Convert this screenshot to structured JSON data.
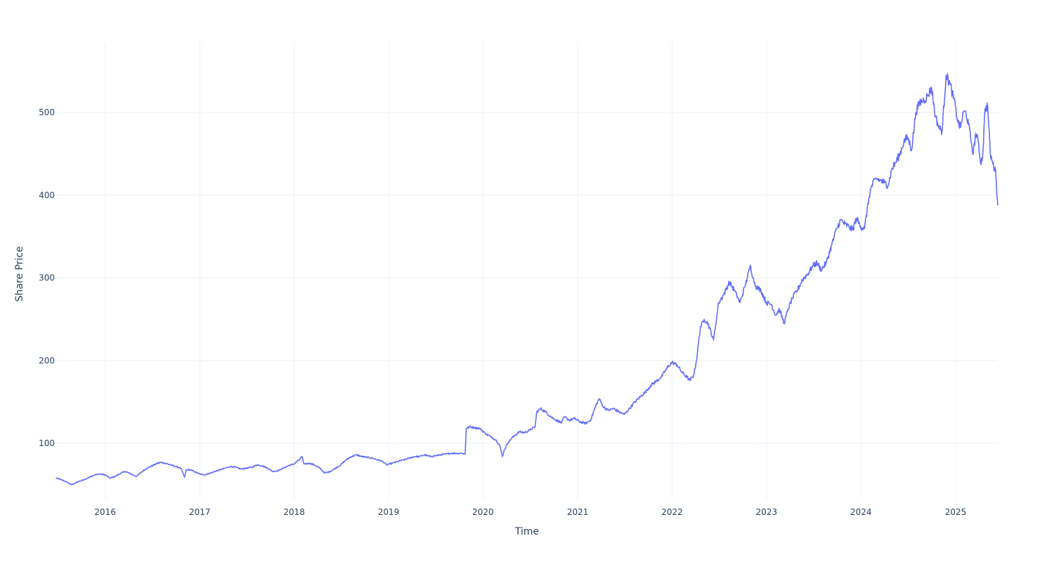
{
  "chart_data": {
    "type": "line",
    "title": "",
    "xlabel": "Time",
    "ylabel": "Share Price",
    "x_axis_type": "date",
    "xlim": [
      "2015-06-26",
      "2025-06-13"
    ],
    "ylim": [
      33,
      585
    ],
    "grid": true,
    "legend": "none",
    "x_ticks": [
      "2016",
      "2017",
      "2018",
      "2019",
      "2020",
      "2021",
      "2022",
      "2023",
      "2024",
      "2025"
    ],
    "x_tick_dates": [
      "2016-01-01",
      "2017-01-01",
      "2018-01-01",
      "2019-01-01",
      "2020-01-01",
      "2021-01-01",
      "2022-01-01",
      "2023-01-01",
      "2024-01-01",
      "2025-01-01"
    ],
    "y_ticks": [
      100,
      200,
      300,
      400,
      500
    ],
    "line_color": "#636efa",
    "series": [
      {
        "x": [
          "2015-06-26",
          "2015-07-15",
          "2015-08-01",
          "2015-08-24",
          "2015-09-15",
          "2015-10-01",
          "2015-10-20",
          "2015-11-05",
          "2015-11-25",
          "2015-12-10",
          "2015-12-31",
          "2016-01-20",
          "2016-02-10",
          "2016-03-01",
          "2016-03-20",
          "2016-04-10",
          "2016-04-30",
          "2016-05-20",
          "2016-06-10",
          "2016-06-25",
          "2016-07-15",
          "2016-08-01",
          "2016-08-20",
          "2016-09-10",
          "2016-09-30",
          "2016-10-20",
          "2016-11-03",
          "2016-11-10",
          "2016-11-25",
          "2016-12-10",
          "2016-12-31",
          "2017-01-20",
          "2017-02-10",
          "2017-03-01",
          "2017-03-20",
          "2017-04-10",
          "2017-04-30",
          "2017-05-20",
          "2017-06-10",
          "2017-06-30",
          "2017-07-20",
          "2017-08-10",
          "2017-08-30",
          "2017-09-20",
          "2017-10-10",
          "2017-10-31",
          "2017-11-20",
          "2017-12-10",
          "2017-12-31",
          "2018-01-20",
          "2018-01-31",
          "2018-02-08",
          "2018-02-28",
          "2018-03-20",
          "2018-04-10",
          "2018-04-30",
          "2018-05-20",
          "2018-06-10",
          "2018-06-30",
          "2018-07-20",
          "2018-08-10",
          "2018-08-30",
          "2018-09-20",
          "2018-10-10",
          "2018-10-31",
          "2018-11-20",
          "2018-12-10",
          "2018-12-24",
          "2019-01-15",
          "2019-02-05",
          "2019-02-28",
          "2019-03-20",
          "2019-04-10",
          "2019-04-30",
          "2019-05-20",
          "2019-06-10",
          "2019-06-30",
          "2019-07-20",
          "2019-08-10",
          "2019-08-30",
          "2019-09-20",
          "2019-10-10",
          "2019-10-24",
          "2019-10-28",
          "2019-11-10",
          "2019-11-30",
          "2019-12-20",
          "2020-01-10",
          "2020-01-31",
          "2020-02-20",
          "2020-03-05",
          "2020-03-16",
          "2020-03-23",
          "2020-04-05",
          "2020-04-20",
          "2020-05-05",
          "2020-05-20",
          "2020-06-10",
          "2020-06-30",
          "2020-07-20",
          "2020-07-27",
          "2020-08-10",
          "2020-08-30",
          "2020-09-20",
          "2020-10-10",
          "2020-10-31",
          "2020-11-10",
          "2020-11-30",
          "2020-12-20",
          "2021-01-10",
          "2021-01-31",
          "2021-02-20",
          "2021-03-10",
          "2021-03-25",
          "2021-04-10",
          "2021-04-30",
          "2021-05-20",
          "2021-06-10",
          "2021-06-30",
          "2021-07-20",
          "2021-08-10",
          "2021-08-30",
          "2021-09-20",
          "2021-10-10",
          "2021-10-31",
          "2021-11-20",
          "2021-12-10",
          "2021-12-31",
          "2022-01-20",
          "2022-02-10",
          "2022-02-28",
          "2022-03-10",
          "2022-03-25",
          "2022-04-05",
          "2022-04-20",
          "2022-05-05",
          "2022-05-20",
          "2022-06-10",
          "2022-06-30",
          "2022-07-20",
          "2022-08-10",
          "2022-08-30",
          "2022-09-20",
          "2022-10-10",
          "2022-10-31",
          "2022-11-10",
          "2022-11-20",
          "2022-12-10",
          "2022-12-31",
          "2023-01-20",
          "2023-02-05",
          "2023-02-20",
          "2023-03-10",
          "2023-03-25",
          "2023-04-10",
          "2023-04-30",
          "2023-05-20",
          "2023-06-10",
          "2023-06-30",
          "2023-07-15",
          "2023-07-31",
          "2023-08-20",
          "2023-09-10",
          "2023-09-30",
          "2023-10-15",
          "2023-10-31",
          "2023-11-15",
          "2023-11-30",
          "2023-12-15",
          "2023-12-31",
          "2024-01-15",
          "2024-01-31",
          "2024-02-10",
          "2024-02-28",
          "2024-03-15",
          "2024-03-31",
          "2024-04-15",
          "2024-04-30",
          "2024-05-15",
          "2024-05-31",
          "2024-06-15",
          "2024-06-30",
          "2024-07-15",
          "2024-07-31",
          "2024-08-15",
          "2024-08-31",
          "2024-09-15",
          "2024-09-30",
          "2024-10-15",
          "2024-10-31",
          "2024-11-10",
          "2024-11-25",
          "2024-12-10",
          "2024-12-31",
          "2025-01-10",
          "2025-01-20",
          "2025-01-31",
          "2025-02-10",
          "2025-02-20",
          "2025-02-28",
          "2025-03-10",
          "2025-03-20",
          "2025-03-31",
          "2025-04-07",
          "2025-04-15",
          "2025-04-25",
          "2025-05-05",
          "2025-05-15",
          "2025-05-25",
          "2025-06-05",
          "2025-06-13"
        ],
        "y": [
          58,
          56,
          54,
          50,
          53,
          55,
          57,
          60,
          62,
          63,
          62,
          58,
          60,
          64,
          66,
          63,
          60,
          65,
          70,
          72,
          75,
          77,
          76,
          74,
          72,
          70,
          59,
          68,
          68,
          66,
          63,
          62,
          64,
          66,
          68,
          70,
          72,
          71,
          69,
          70,
          71,
          74,
          73,
          70,
          66,
          67,
          70,
          73,
          75,
          80,
          84,
          75,
          76,
          74,
          70,
          64,
          66,
          70,
          74,
          80,
          84,
          86,
          84,
          83,
          82,
          80,
          78,
          74,
          76,
          78,
          80,
          82,
          84,
          84,
          86,
          84,
          85,
          86,
          87,
          88,
          88,
          88,
          87,
          118,
          120,
          119,
          118,
          112,
          108,
          104,
          98,
          84,
          92,
          100,
          106,
          110,
          114,
          113,
          116,
          120,
          138,
          142,
          138,
          132,
          128,
          125,
          132,
          128,
          130,
          126,
          124,
          128,
          144,
          154,
          144,
          140,
          142,
          138,
          135,
          142,
          150,
          156,
          162,
          170,
          175,
          180,
          190,
          198,
          195,
          185,
          180,
          176,
          182,
          200,
          240,
          250,
          245,
          225,
          270,
          280,
          295,
          285,
          270,
          290,
          315,
          300,
          290,
          285,
          270,
          268,
          255,
          262,
          245,
          262,
          275,
          285,
          298,
          305,
          315,
          318,
          310,
          318,
          340,
          360,
          370,
          365,
          362,
          358,
          372,
          362,
          360,
          395,
          410,
          420,
          418,
          415,
          412,
          432,
          440,
          450,
          465,
          470,
          455,
          500,
          512,
          515,
          520,
          530,
          495,
          480,
          478,
          545,
          535,
          508,
          488,
          482,
          500,
          500,
          485,
          470,
          450,
          475,
          462,
          440,
          445,
          505,
          508,
          450,
          438,
          428,
          388
        ]
      }
    ]
  }
}
